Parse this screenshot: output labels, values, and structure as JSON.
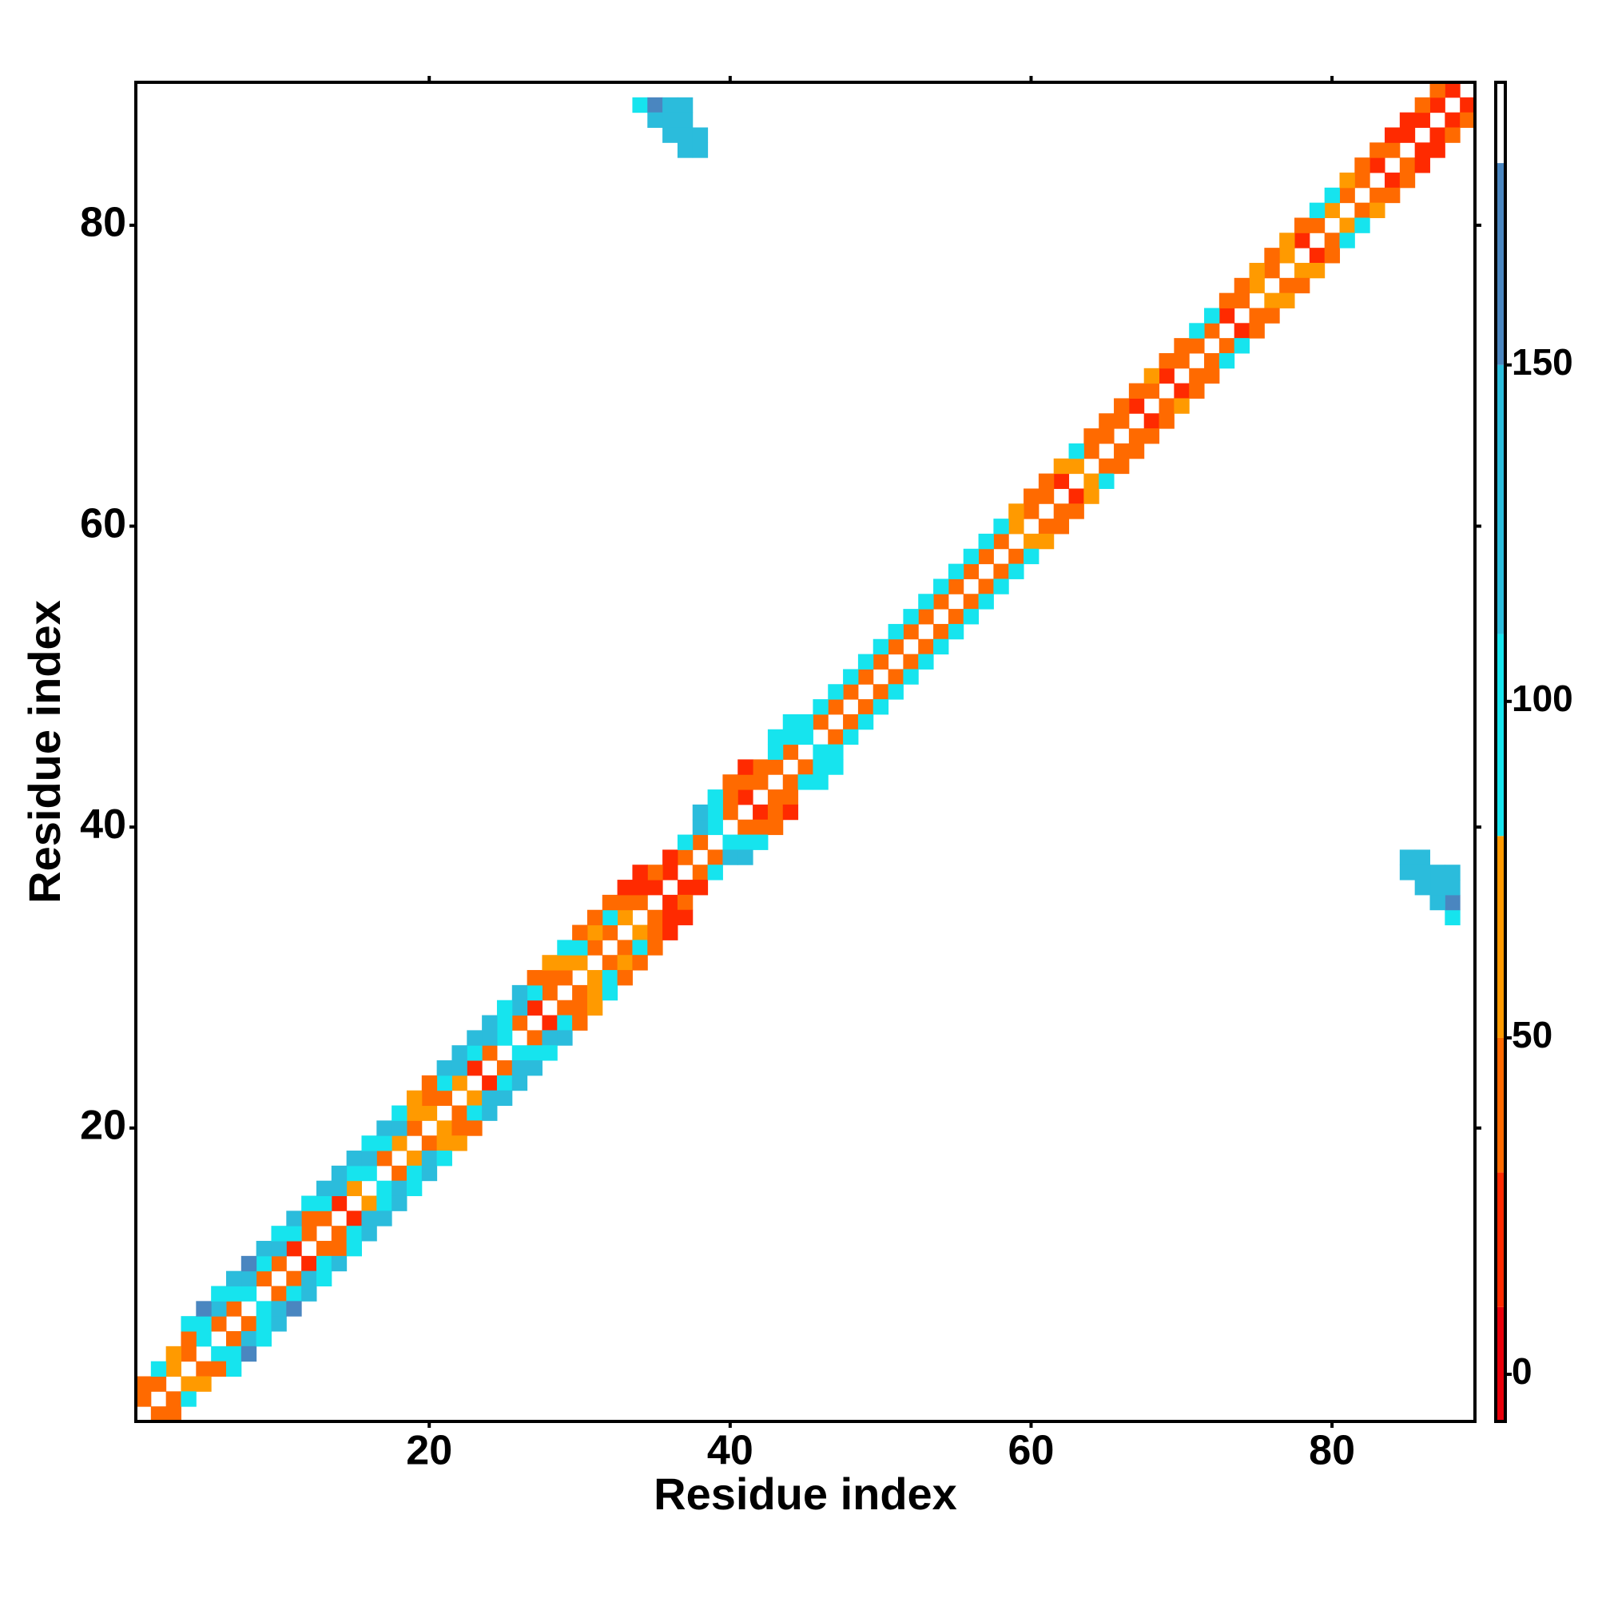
{
  "chart_data": {
    "type": "heatmap",
    "xlabel": "Residue index",
    "ylabel": "Residue index",
    "xlim": [
      0.5,
      89.5
    ],
    "ylim": [
      0.5,
      89.5
    ],
    "xticks": [
      20,
      40,
      60,
      80
    ],
    "yticks": [
      20,
      40,
      60,
      80
    ],
    "symmetric": true,
    "colorbar": {
      "lim": [
        -7,
        192
      ],
      "ticks": [
        0,
        50,
        100,
        150
      ],
      "bands": [
        {
          "from": -7,
          "to": 10,
          "color": "#e8000b"
        },
        {
          "from": 10,
          "to": 30,
          "color": "#ff2a00"
        },
        {
          "from": 30,
          "to": 50,
          "color": "#ff6a00"
        },
        {
          "from": 50,
          "to": 80,
          "color": "#ff9a00"
        },
        {
          "from": 80,
          "to": 110,
          "color": "#16e4ee"
        },
        {
          "from": 110,
          "to": 150,
          "color": "#2bbcdc"
        },
        {
          "from": 150,
          "to": 180,
          "color": "#4a86c0"
        },
        {
          "from": 180,
          "to": 192,
          "color": "#ffffff"
        }
      ]
    },
    "cells": [
      [
        1,
        2,
        40
      ],
      [
        2,
        3,
        40
      ],
      [
        3,
        4,
        60
      ],
      [
        4,
        5,
        40
      ],
      [
        5,
        6,
        95
      ],
      [
        6,
        7,
        40
      ],
      [
        7,
        8,
        40
      ],
      [
        8,
        9,
        95
      ],
      [
        9,
        10,
        40
      ],
      [
        10,
        11,
        40
      ],
      [
        11,
        12,
        15
      ],
      [
        12,
        13,
        40
      ],
      [
        13,
        14,
        40
      ],
      [
        14,
        15,
        15
      ],
      [
        15,
        16,
        60
      ],
      [
        16,
        17,
        95
      ],
      [
        17,
        18,
        40
      ],
      [
        18,
        19,
        60
      ],
      [
        19,
        20,
        40
      ],
      [
        20,
        21,
        60
      ],
      [
        21,
        22,
        40
      ],
      [
        22,
        23,
        60
      ],
      [
        23,
        24,
        15
      ],
      [
        24,
        25,
        40
      ],
      [
        25,
        26,
        95
      ],
      [
        26,
        27,
        40
      ],
      [
        27,
        28,
        15
      ],
      [
        28,
        29,
        40
      ],
      [
        29,
        30,
        40
      ],
      [
        30,
        31,
        60
      ],
      [
        31,
        32,
        40
      ],
      [
        32,
        33,
        40
      ],
      [
        33,
        34,
        60
      ],
      [
        34,
        35,
        40
      ],
      [
        35,
        36,
        15
      ],
      [
        36,
        37,
        15
      ],
      [
        37,
        38,
        40
      ],
      [
        38,
        39,
        40
      ],
      [
        39,
        40,
        95
      ],
      [
        40,
        41,
        40
      ],
      [
        41,
        42,
        15
      ],
      [
        42,
        43,
        40
      ],
      [
        43,
        44,
        40
      ],
      [
        44,
        45,
        40
      ],
      [
        45,
        46,
        95
      ],
      [
        46,
        47,
        40
      ],
      [
        47,
        48,
        40
      ],
      [
        48,
        49,
        40
      ],
      [
        49,
        50,
        40
      ],
      [
        50,
        51,
        40
      ],
      [
        51,
        52,
        40
      ],
      [
        52,
        53,
        40
      ],
      [
        53,
        54,
        40
      ],
      [
        54,
        55,
        40
      ],
      [
        55,
        56,
        40
      ],
      [
        56,
        57,
        40
      ],
      [
        57,
        58,
        40
      ],
      [
        58,
        59,
        40
      ],
      [
        59,
        60,
        60
      ],
      [
        60,
        61,
        40
      ],
      [
        61,
        62,
        40
      ],
      [
        62,
        63,
        15
      ],
      [
        63,
        64,
        60
      ],
      [
        64,
        65,
        40
      ],
      [
        65,
        66,
        40
      ],
      [
        66,
        67,
        40
      ],
      [
        67,
        68,
        15
      ],
      [
        68,
        69,
        40
      ],
      [
        69,
        70,
        15
      ],
      [
        70,
        71,
        40
      ],
      [
        71,
        72,
        40
      ],
      [
        72,
        73,
        40
      ],
      [
        73,
        74,
        15
      ],
      [
        74,
        75,
        40
      ],
      [
        75,
        76,
        60
      ],
      [
        76,
        77,
        40
      ],
      [
        77,
        78,
        60
      ],
      [
        78,
        79,
        15
      ],
      [
        79,
        80,
        40
      ],
      [
        80,
        81,
        60
      ],
      [
        81,
        82,
        40
      ],
      [
        82,
        83,
        40
      ],
      [
        83,
        84,
        15
      ],
      [
        84,
        85,
        40
      ],
      [
        85,
        86,
        15
      ],
      [
        86,
        87,
        15
      ],
      [
        87,
        88,
        15
      ],
      [
        88,
        89,
        15
      ],
      [
        1,
        3,
        40
      ],
      [
        2,
        4,
        95
      ],
      [
        3,
        5,
        60
      ],
      [
        4,
        6,
        40
      ],
      [
        5,
        7,
        100
      ],
      [
        6,
        8,
        120
      ],
      [
        7,
        9,
        100
      ],
      [
        8,
        10,
        120
      ],
      [
        9,
        11,
        100
      ],
      [
        10,
        12,
        120
      ],
      [
        11,
        13,
        100
      ],
      [
        12,
        14,
        40
      ],
      [
        13,
        15,
        100
      ],
      [
        14,
        16,
        120
      ],
      [
        15,
        17,
        100
      ],
      [
        16,
        18,
        130
      ],
      [
        17,
        19,
        100
      ],
      [
        18,
        20,
        120
      ],
      [
        19,
        21,
        60
      ],
      [
        20,
        22,
        40
      ],
      [
        21,
        23,
        100
      ],
      [
        22,
        24,
        120
      ],
      [
        23,
        25,
        100
      ],
      [
        24,
        26,
        120
      ],
      [
        25,
        27,
        100
      ],
      [
        26,
        28,
        120
      ],
      [
        27,
        29,
        100
      ],
      [
        28,
        30,
        40
      ],
      [
        29,
        31,
        60
      ],
      [
        30,
        32,
        100
      ],
      [
        31,
        33,
        60
      ],
      [
        32,
        34,
        100
      ],
      [
        33,
        35,
        40
      ],
      [
        34,
        36,
        15
      ],
      [
        35,
        37,
        40
      ],
      [
        36,
        38,
        15
      ],
      [
        37,
        39,
        100
      ],
      [
        38,
        40,
        120
      ],
      [
        39,
        41,
        100
      ],
      [
        40,
        42,
        40
      ],
      [
        41,
        43,
        40
      ],
      [
        42,
        44,
        40
      ],
      [
        43,
        45,
        100
      ],
      [
        44,
        46,
        100
      ],
      [
        45,
        47,
        100
      ],
      [
        46,
        48,
        100
      ],
      [
        47,
        49,
        100
      ],
      [
        48,
        50,
        100
      ],
      [
        49,
        51,
        100
      ],
      [
        50,
        52,
        100
      ],
      [
        51,
        53,
        100
      ],
      [
        52,
        54,
        100
      ],
      [
        53,
        55,
        100
      ],
      [
        54,
        56,
        100
      ],
      [
        55,
        57,
        100
      ],
      [
        56,
        58,
        100
      ],
      [
        57,
        59,
        100
      ],
      [
        58,
        60,
        100
      ],
      [
        59,
        61,
        60
      ],
      [
        60,
        62,
        40
      ],
      [
        61,
        63,
        40
      ],
      [
        62,
        64,
        60
      ],
      [
        63,
        65,
        100
      ],
      [
        64,
        66,
        40
      ],
      [
        65,
        67,
        40
      ],
      [
        66,
        68,
        40
      ],
      [
        67,
        69,
        40
      ],
      [
        68,
        70,
        60
      ],
      [
        69,
        71,
        40
      ],
      [
        70,
        72,
        40
      ],
      [
        71,
        73,
        100
      ],
      [
        72,
        74,
        100
      ],
      [
        73,
        75,
        40
      ],
      [
        74,
        76,
        40
      ],
      [
        75,
        77,
        60
      ],
      [
        76,
        78,
        40
      ],
      [
        77,
        79,
        60
      ],
      [
        78,
        80,
        40
      ],
      [
        79,
        81,
        100
      ],
      [
        80,
        82,
        100
      ],
      [
        81,
        83,
        60
      ],
      [
        82,
        84,
        40
      ],
      [
        83,
        85,
        40
      ],
      [
        84,
        86,
        15
      ],
      [
        85,
        87,
        15
      ],
      [
        86,
        88,
        40
      ],
      [
        87,
        89,
        40
      ],
      [
        4,
        7,
        100
      ],
      [
        5,
        8,
        160
      ],
      [
        6,
        9,
        100
      ],
      [
        7,
        10,
        120
      ],
      [
        8,
        11,
        160
      ],
      [
        9,
        12,
        120
      ],
      [
        10,
        13,
        100
      ],
      [
        11,
        14,
        120
      ],
      [
        12,
        15,
        100
      ],
      [
        13,
        16,
        120
      ],
      [
        14,
        17,
        140
      ],
      [
        15,
        18,
        120
      ],
      [
        16,
        19,
        100
      ],
      [
        17,
        20,
        120
      ],
      [
        18,
        21,
        100
      ],
      [
        19,
        22,
        60
      ],
      [
        20,
        23,
        40
      ],
      [
        21,
        24,
        120
      ],
      [
        22,
        25,
        130
      ],
      [
        23,
        26,
        120
      ],
      [
        24,
        27,
        120
      ],
      [
        25,
        28,
        100
      ],
      [
        26,
        29,
        120
      ],
      [
        27,
        30,
        40
      ],
      [
        28,
        31,
        60
      ],
      [
        29,
        32,
        100
      ],
      [
        30,
        33,
        40
      ],
      [
        31,
        34,
        40
      ],
      [
        32,
        35,
        40
      ],
      [
        33,
        36,
        15
      ],
      [
        34,
        37,
        15
      ],
      [
        38,
        41,
        120
      ],
      [
        39,
        42,
        100
      ],
      [
        40,
        43,
        40
      ],
      [
        41,
        44,
        15
      ],
      [
        43,
        46,
        100
      ],
      [
        44,
        47,
        100
      ],
      [
        34,
        88,
        100
      ],
      [
        35,
        88,
        160
      ],
      [
        36,
        88,
        120
      ],
      [
        37,
        88,
        120
      ],
      [
        35,
        87,
        120
      ],
      [
        36,
        87,
        120
      ],
      [
        37,
        87,
        120
      ],
      [
        36,
        86,
        140
      ],
      [
        37,
        86,
        140
      ],
      [
        38,
        86,
        120
      ],
      [
        37,
        85,
        120
      ],
      [
        38,
        85,
        120
      ]
    ]
  }
}
